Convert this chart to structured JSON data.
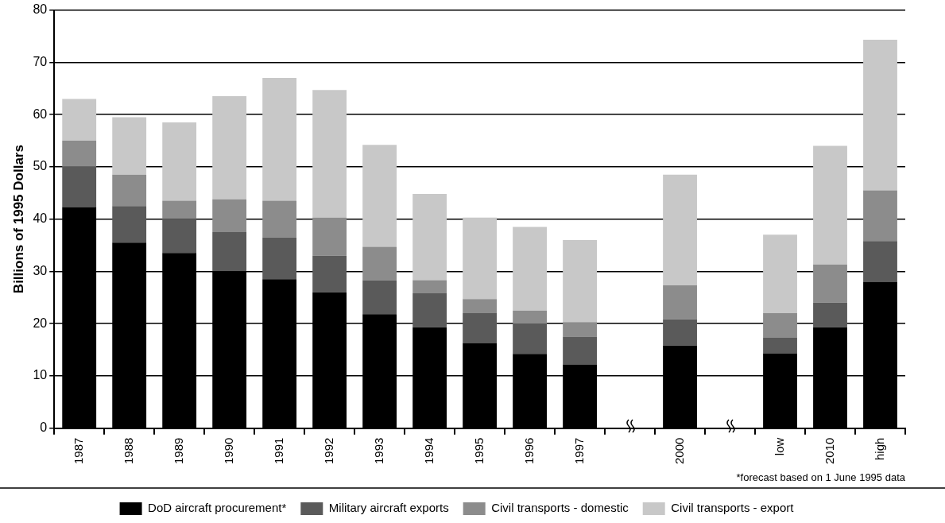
{
  "chart_data": {
    "type": "bar",
    "stacked": true,
    "ylabel": "Billions of 1995 Dollars",
    "categories": [
      "1987",
      "1988",
      "1989",
      "1990",
      "1991",
      "1992",
      "1993",
      "1994",
      "1995",
      "1996",
      "1997",
      null,
      "2000",
      null,
      "low",
      "2010",
      "high"
    ],
    "series": [
      {
        "name": "DoD aircraft procurement*",
        "color": "#000000",
        "values": [
          42.3,
          35.5,
          33.5,
          30,
          28.5,
          26,
          21.8,
          19.3,
          16.3,
          14.2,
          12.2,
          null,
          15.8,
          null,
          14.3,
          19.3,
          28
        ]
      },
      {
        "name": "Military aircraft exports",
        "color": "#5a5a5a",
        "values": [
          7.7,
          7,
          6.5,
          7.5,
          8,
          7,
          6.5,
          6.5,
          5.7,
          5.8,
          5.3,
          null,
          5,
          null,
          3,
          4.7,
          7.8
        ]
      },
      {
        "name": "Civil transports - domestic",
        "color": "#8c8c8c",
        "values": [
          5,
          6,
          3.5,
          6.3,
          7,
          7.3,
          6.4,
          2.5,
          2.7,
          2.5,
          2.8,
          null,
          6.5,
          null,
          4.7,
          7.3,
          9.7
        ]
      },
      {
        "name": "Civil transports - export",
        "color": "#c8c8c8",
        "values": [
          8,
          11,
          15,
          19.7,
          23.5,
          24.4,
          19.5,
          16.5,
          15.6,
          16,
          15.7,
          null,
          21.2,
          null,
          15,
          22.7,
          28.8
        ]
      }
    ],
    "ylim": [
      0,
      80
    ],
    "yticks": [
      0,
      10,
      20,
      30,
      40,
      50,
      60,
      70,
      80
    ],
    "grid": "y",
    "legend": "bottom",
    "annotations": [
      "*forecast based on 1 June 1995 data"
    ]
  }
}
